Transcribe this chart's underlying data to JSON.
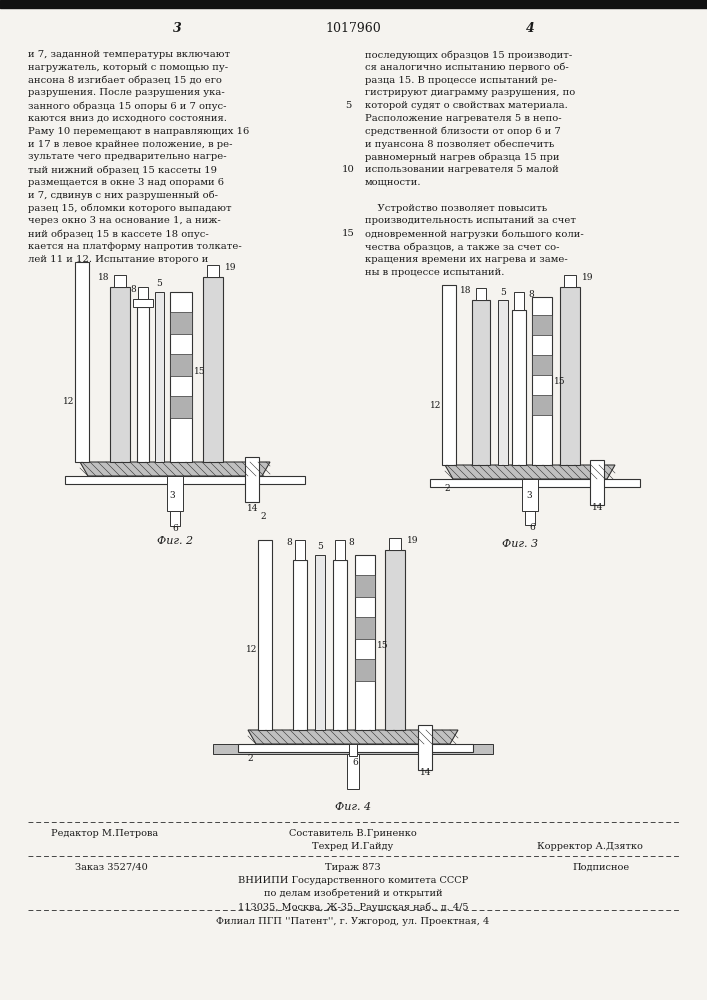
{
  "bg_color": "#f5f3ef",
  "text_color": "#1a1a1a",
  "line_color": "#333333",
  "col1_text": [
    "и 7, заданной температуры включают",
    "нагружатель, который с помощью пу-",
    "ансона 8 изгибает образец 15 до его",
    "разрушения. После разрушения ука-",
    "занного образца 15 опоры 6 и 7 опус-",
    "каются вниз до исходного состояния.",
    "Раму 10 перемещают в направляющих 16",
    "и 17 в левое крайнее положение, в ре-",
    "зультате чего предварительно нагре-",
    "тый нижний образец 15 кассеты 19",
    "размещается в окне 3 над опорами 6",
    "и 7, сдвинув с них разрушенный об-",
    "разец 15, обломки которого выпадают",
    "через окно 3 на основание 1, а ниж-",
    "ний образец 15 в кассете 18 опус-",
    "кается на платформу напротив толкате-",
    "лей 11 и 12. Испытание второго и"
  ],
  "col2_text": [
    "последующих образцов 15 производит-",
    "ся аналогично испытанию первого об-",
    "разца 15. В процессе испытаний ре-",
    "гистрируют диаграмму разрушения, по",
    "которой судят о свойствах материала.",
    "Расположение нагревателя 5 в непо-",
    "средственной близости от опор 6 и 7",
    "и пуансона 8 позволяет обеспечить",
    "равномерный нагрев образца 15 при",
    "использовании нагревателя 5 малой",
    "мощности.",
    "",
    "    Устройство позволяет повысить",
    "производительность испытаний за счет",
    "одновременной нагрузки большого коли-",
    "чества образцов, а также за счет со-",
    "кращения времени их нагрева и заме-",
    "ны в процессе испытаний."
  ],
  "fig2_caption": "Фиг. 2",
  "fig3_caption": "Фиг. 3",
  "fig4_caption": "Фиг. 4",
  "footer_editor": "Редактор М.Петрова",
  "footer_composer": "Составитель В.Гриненко",
  "footer_tehred": "Техред И.Гайду",
  "footer_korrektor": "Корректор А.Дзятко",
  "footer_order": "Заказ 3527/40",
  "footer_tirazh": "Тираж 873",
  "footer_podp": "Подписное",
  "footer_vniip": "ВНИИПИ Государственного комитета СССР",
  "footer_dela": "по делам изобретений и открытий",
  "footer_addr": "113035, Москва, Ж-35, Раушская наб., д. 4/5",
  "footer_filial": "Филиал ПГП ''Патент'', г. Ужгород, ул. Проектная, 4",
  "header_num_left": "3",
  "header_patent": "1017960",
  "header_num_right": "4"
}
